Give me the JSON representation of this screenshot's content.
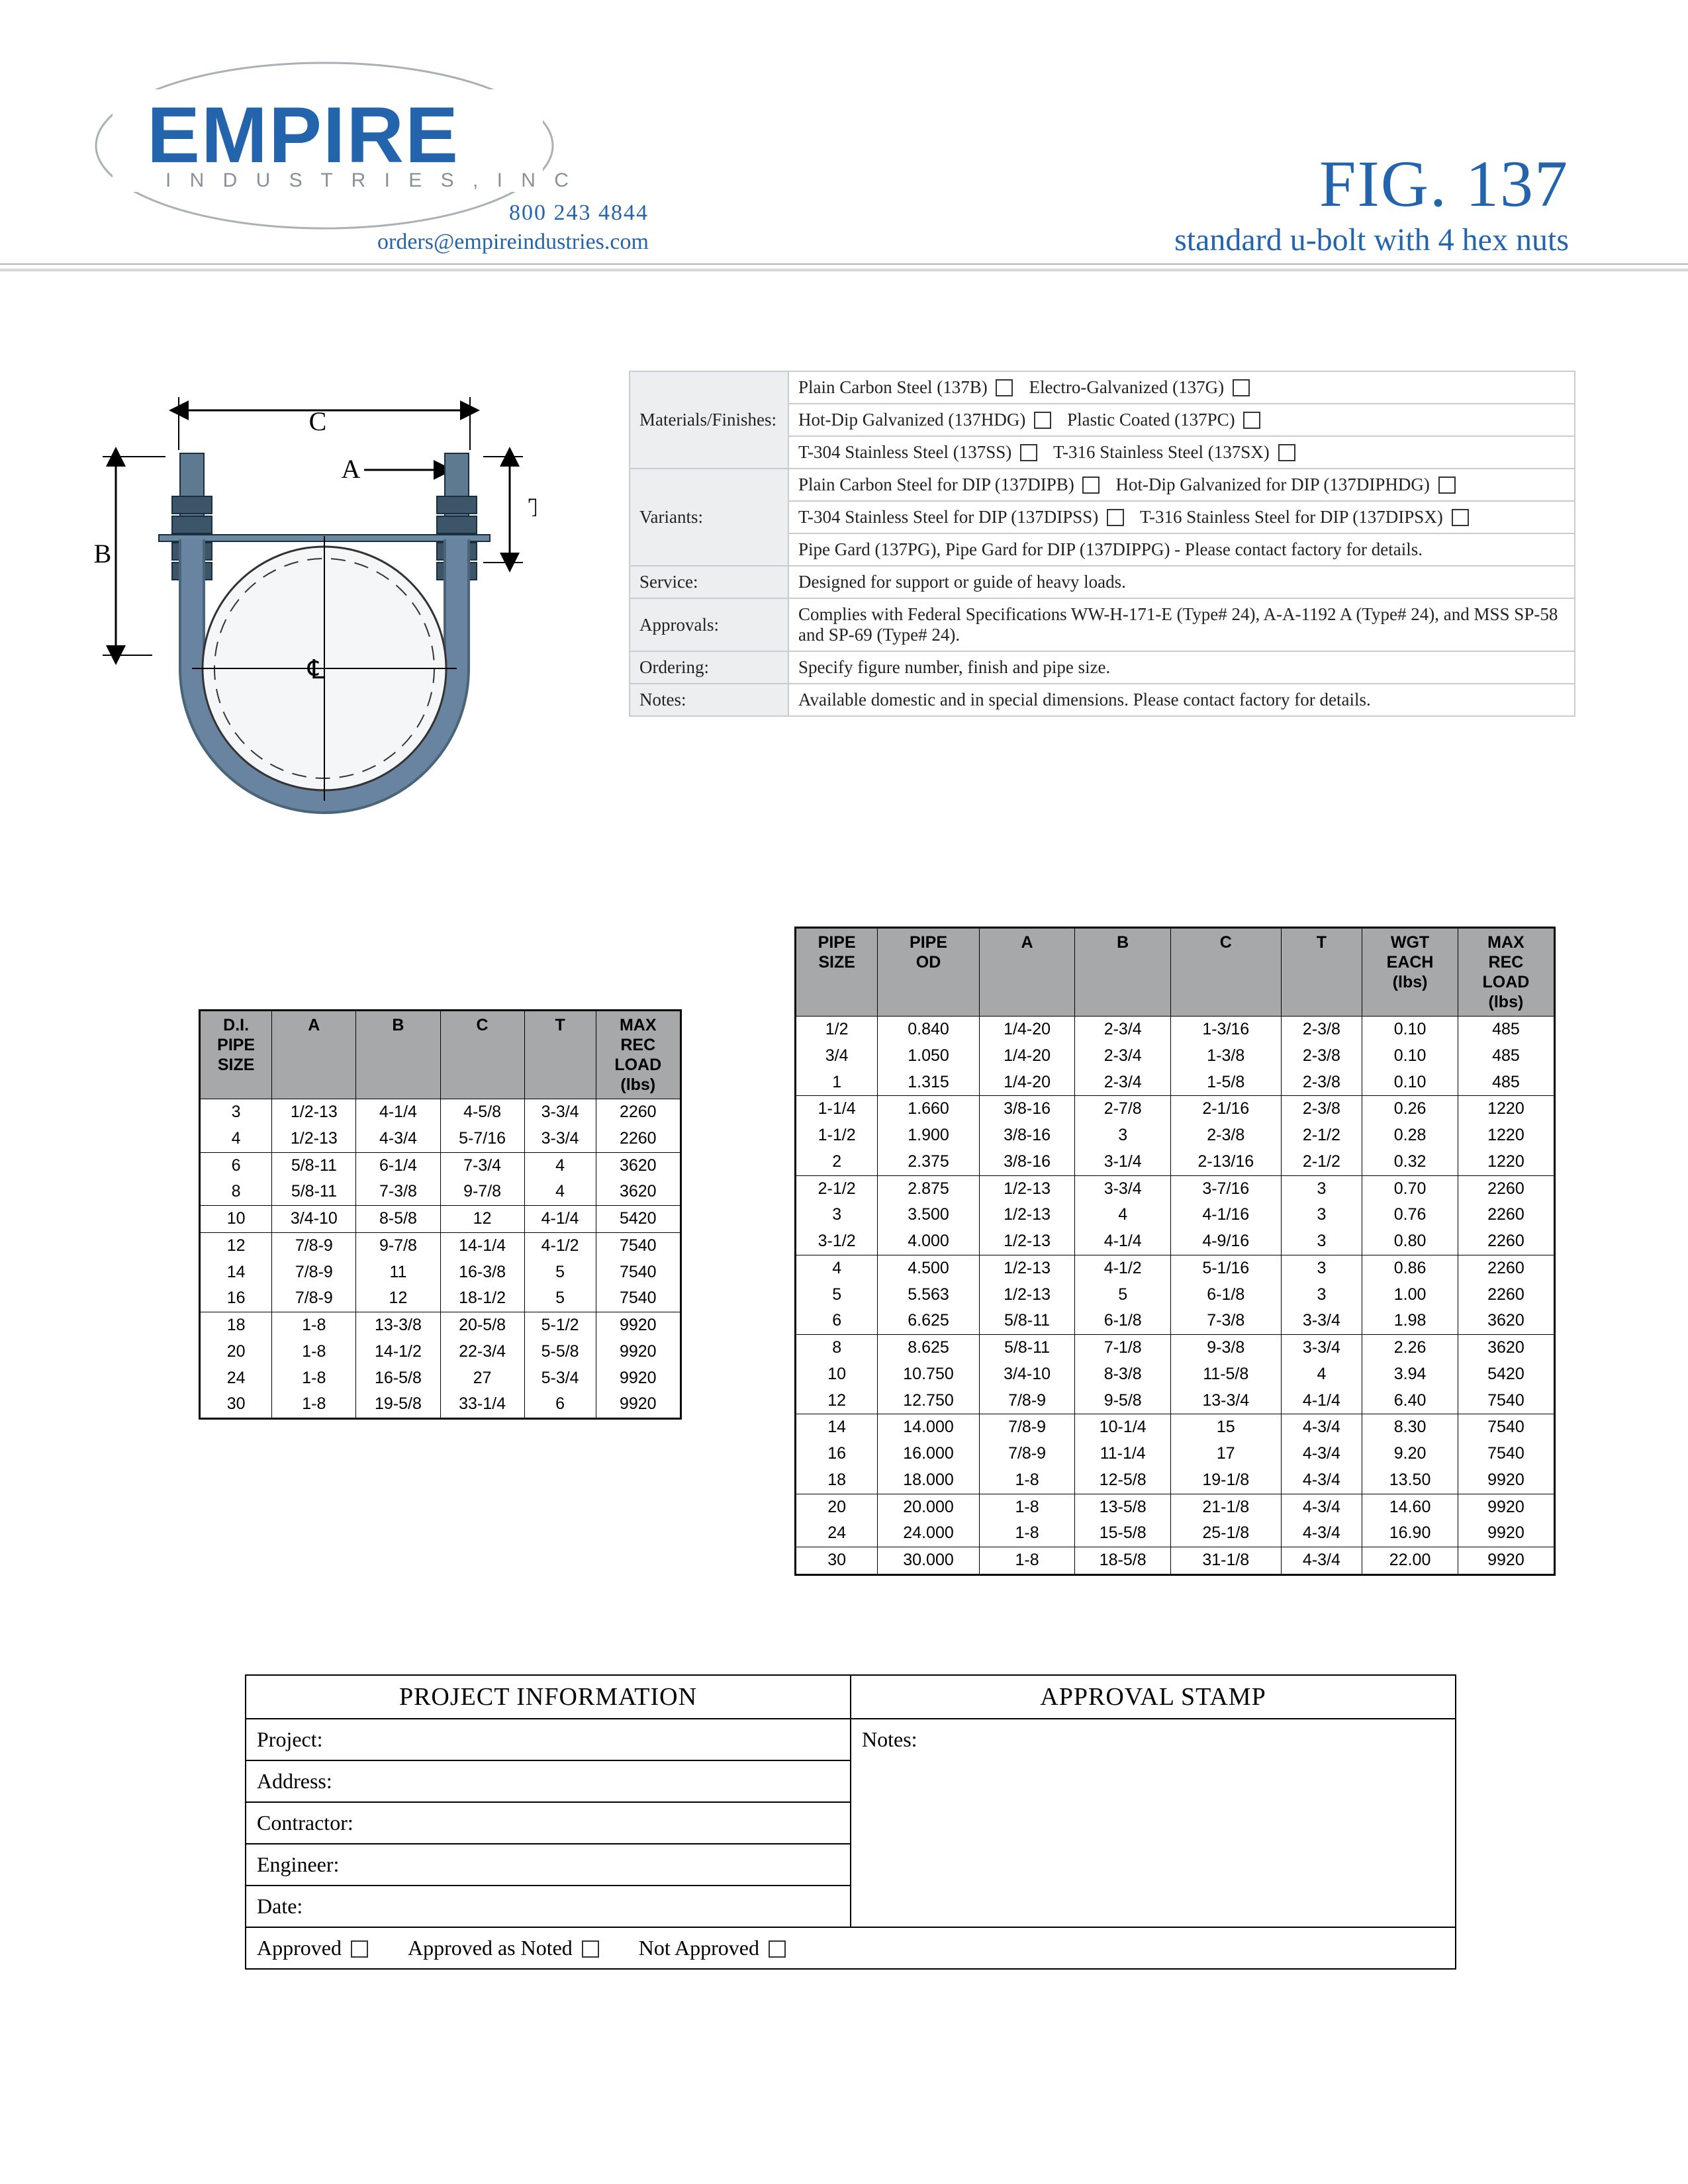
{
  "logo": {
    "main": "EMPIRE",
    "sub": "I N D U S T R I E S , I N C"
  },
  "contact": {
    "phone": "800 243 4844",
    "email": "orders@empireindustries.com"
  },
  "title": {
    "fig": "FIG. 137",
    "desc": "standard u-bolt with 4 hex nuts"
  },
  "colors": {
    "brand": "#2464ac",
    "ellipse": "#a8b0b8",
    "subtext": "#8a9098",
    "th_bg": "#a6a8aa",
    "spec_border": "#c8ccd0"
  },
  "diagram": {
    "labels": {
      "A": "A",
      "B": "B",
      "C": "C",
      "T": "T"
    }
  },
  "spec": {
    "materials_label": "Materials/Finishes:",
    "materials": [
      [
        "Plain Carbon Steel (137B)",
        "Electro-Galvanized (137G)"
      ],
      [
        "Hot-Dip Galvanized (137HDG)",
        "Plastic Coated (137PC)"
      ],
      [
        "T-304 Stainless Steel (137SS)",
        "T-316 Stainless Steel (137SX)"
      ]
    ],
    "variants_label": "Variants:",
    "variants": [
      [
        "Plain Carbon Steel for DIP (137DIPB)",
        "Hot-Dip Galvanized for DIP (137DIPHDG)"
      ],
      [
        "T-304 Stainless Steel for DIP (137DIPSS)",
        "T-316 Stainless Steel for DIP (137DIPSX)"
      ]
    ],
    "variants_note": "Pipe Gard (137PG), Pipe Gard for DIP (137DIPPG)  - Please contact factory for details.",
    "service_label": "Service:",
    "service": "Designed for support or guide of heavy loads.",
    "approvals_label": "Approvals:",
    "approvals": "Complies with Federal Specifications WW-H-171-E (Type# 24), A-A-1192 A (Type# 24), and MSS SP-58 and SP-69 (Type# 24).",
    "ordering_label": "Ordering:",
    "ordering": "Specify figure number, finish and pipe size.",
    "notes_label": "Notes:",
    "notes": "Available domestic and in special dimensions. Please contact factory for details."
  },
  "di_table": {
    "columns": [
      "D.I.\nPIPE\nSIZE",
      "A",
      "B",
      "C",
      "T",
      "MAX\nREC\nLOAD\n(lbs)"
    ],
    "groups": [
      [
        [
          "3",
          "1/2-13",
          "4-1/4",
          "4-5/8",
          "3-3/4",
          "2260"
        ],
        [
          "4",
          "1/2-13",
          "4-3/4",
          "5-7/16",
          "3-3/4",
          "2260"
        ]
      ],
      [
        [
          "6",
          "5/8-11",
          "6-1/4",
          "7-3/4",
          "4",
          "3620"
        ],
        [
          "8",
          "5/8-11",
          "7-3/8",
          "9-7/8",
          "4",
          "3620"
        ]
      ],
      [
        [
          "10",
          "3/4-10",
          "8-5/8",
          "12",
          "4-1/4",
          "5420"
        ]
      ],
      [
        [
          "12",
          "7/8-9",
          "9-7/8",
          "14-1/4",
          "4-1/2",
          "7540"
        ],
        [
          "14",
          "7/8-9",
          "11",
          "16-3/8",
          "5",
          "7540"
        ],
        [
          "16",
          "7/8-9",
          "12",
          "18-1/2",
          "5",
          "7540"
        ]
      ],
      [
        [
          "18",
          "1-8",
          "13-3/8",
          "20-5/8",
          "5-1/2",
          "9920"
        ],
        [
          "20",
          "1-8",
          "14-1/2",
          "22-3/4",
          "5-5/8",
          "9920"
        ],
        [
          "24",
          "1-8",
          "16-5/8",
          "27",
          "5-3/4",
          "9920"
        ],
        [
          "30",
          "1-8",
          "19-5/8",
          "33-1/4",
          "6",
          "9920"
        ]
      ]
    ]
  },
  "pipe_table": {
    "columns": [
      "PIPE\nSIZE",
      "PIPE\nOD",
      "A",
      "B",
      "C",
      "T",
      "WGT\nEACH\n(lbs)",
      "MAX\nREC\nLOAD\n(lbs)"
    ],
    "groups": [
      [
        [
          "1/2",
          "0.840",
          "1/4-20",
          "2-3/4",
          "1-3/16",
          "2-3/8",
          "0.10",
          "485"
        ],
        [
          "3/4",
          "1.050",
          "1/4-20",
          "2-3/4",
          "1-3/8",
          "2-3/8",
          "0.10",
          "485"
        ],
        [
          "1",
          "1.315",
          "1/4-20",
          "2-3/4",
          "1-5/8",
          "2-3/8",
          "0.10",
          "485"
        ]
      ],
      [
        [
          "1-1/4",
          "1.660",
          "3/8-16",
          "2-7/8",
          "2-1/16",
          "2-3/8",
          "0.26",
          "1220"
        ],
        [
          "1-1/2",
          "1.900",
          "3/8-16",
          "3",
          "2-3/8",
          "2-1/2",
          "0.28",
          "1220"
        ],
        [
          "2",
          "2.375",
          "3/8-16",
          "3-1/4",
          "2-13/16",
          "2-1/2",
          "0.32",
          "1220"
        ]
      ],
      [
        [
          "2-1/2",
          "2.875",
          "1/2-13",
          "3-3/4",
          "3-7/16",
          "3",
          "0.70",
          "2260"
        ],
        [
          "3",
          "3.500",
          "1/2-13",
          "4",
          "4-1/16",
          "3",
          "0.76",
          "2260"
        ],
        [
          "3-1/2",
          "4.000",
          "1/2-13",
          "4-1/4",
          "4-9/16",
          "3",
          "0.80",
          "2260"
        ]
      ],
      [
        [
          "4",
          "4.500",
          "1/2-13",
          "4-1/2",
          "5-1/16",
          "3",
          "0.86",
          "2260"
        ],
        [
          "5",
          "5.563",
          "1/2-13",
          "5",
          "6-1/8",
          "3",
          "1.00",
          "2260"
        ],
        [
          "6",
          "6.625",
          "5/8-11",
          "6-1/8",
          "7-3/8",
          "3-3/4",
          "1.98",
          "3620"
        ]
      ],
      [
        [
          "8",
          "8.625",
          "5/8-11",
          "7-1/8",
          "9-3/8",
          "3-3/4",
          "2.26",
          "3620"
        ],
        [
          "10",
          "10.750",
          "3/4-10",
          "8-3/8",
          "11-5/8",
          "4",
          "3.94",
          "5420"
        ],
        [
          "12",
          "12.750",
          "7/8-9",
          "9-5/8",
          "13-3/4",
          "4-1/4",
          "6.40",
          "7540"
        ]
      ],
      [
        [
          "14",
          "14.000",
          "7/8-9",
          "10-1/4",
          "15",
          "4-3/4",
          "8.30",
          "7540"
        ],
        [
          "16",
          "16.000",
          "7/8-9",
          "11-1/4",
          "17",
          "4-3/4",
          "9.20",
          "7540"
        ],
        [
          "18",
          "18.000",
          "1-8",
          "12-5/8",
          "19-1/8",
          "4-3/4",
          "13.50",
          "9920"
        ]
      ],
      [
        [
          "20",
          "20.000",
          "1-8",
          "13-5/8",
          "21-1/8",
          "4-3/4",
          "14.60",
          "9920"
        ],
        [
          "24",
          "24.000",
          "1-8",
          "15-5/8",
          "25-1/8",
          "4-3/4",
          "16.90",
          "9920"
        ]
      ],
      [
        [
          "30",
          "30.000",
          "1-8",
          "18-5/8",
          "31-1/8",
          "4-3/4",
          "22.00",
          "9920"
        ]
      ]
    ]
  },
  "project": {
    "header_left": "PROJECT INFORMATION",
    "header_right": "APPROVAL STAMP",
    "rows_left": [
      "Project:",
      "Address:",
      "Contractor:",
      "Engineer:",
      "Date:"
    ],
    "notes_label": "Notes:",
    "approval_opts": [
      "Approved",
      "Approved as Noted",
      "Not Approved"
    ]
  }
}
